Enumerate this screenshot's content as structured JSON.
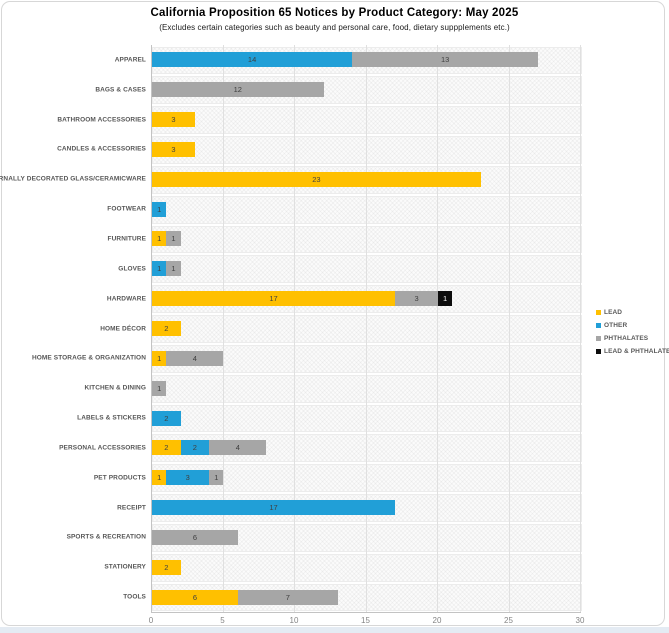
{
  "title": "California Proposition 65 Notices by Product Category: May 2025",
  "subtitle": "(Excludes certain categories such as beauty and personal care, food, dietary suppplements etc.)",
  "colors": {
    "lead": "#FFC000",
    "other": "#219FD7",
    "phthalates": "#A6A6A6",
    "lead_and_phthalates": "#0D0D0D",
    "grid": "#E0E0E0",
    "axis": "#C3C3C3"
  },
  "legend": [
    {
      "label": "LEAD",
      "color": "#FFC000"
    },
    {
      "label": "OTHER",
      "color": "#219FD7"
    },
    {
      "label": "PHTHALATES",
      "color": "#A6A6A6"
    },
    {
      "label": "LEAD & PHTHALATES",
      "color": "#0D0D0D"
    }
  ],
  "chart_data": {
    "type": "bar",
    "orientation": "horizontal",
    "stacked": true,
    "title": "California Proposition 65 Notices by Product Category: May 2025",
    "subtitle": "(Excludes certain categories such as beauty and personal care, food, dietary suppplements etc.)",
    "xlabel": "",
    "ylabel": "",
    "xlim": [
      0,
      30
    ],
    "xticks": [
      0,
      5,
      10,
      15,
      20,
      25,
      30
    ],
    "grid": true,
    "legend_position": "right",
    "categories": [
      "APPAREL",
      "BAGS & CASES",
      "BATHROOM ACCESSORIES",
      "CANDLES & ACCESSORIES",
      "EXTERNALLY DECORATED GLASS/CERAMICWARE",
      "FOOTWEAR",
      "FURNITURE",
      "GLOVES",
      "HARDWARE",
      "HOME DÉCOR",
      "HOME STORAGE & ORGANIZATION",
      "KITCHEN & DINING",
      "LABELS & STICKERS",
      "PERSONAL ACCESSORIES",
      "PET PRODUCTS",
      "RECEIPT",
      "SPORTS & RECREATION",
      "STATIONERY",
      "TOOLS"
    ],
    "series": [
      {
        "name": "LEAD",
        "color": "#FFC000",
        "label_color": "#3F3F3F",
        "values": [
          0,
          0,
          3,
          3,
          23,
          0,
          1,
          0,
          17,
          2,
          1,
          0,
          0,
          2,
          1,
          0,
          0,
          2,
          6
        ]
      },
      {
        "name": "OTHER",
        "color": "#219FD7",
        "label_color": "#3F3F3F",
        "values": [
          14,
          0,
          0,
          0,
          0,
          1,
          0,
          1,
          0,
          0,
          0,
          0,
          2,
          2,
          3,
          17,
          0,
          0,
          0
        ]
      },
      {
        "name": "PHTHALATES",
        "color": "#A6A6A6",
        "label_color": "#3F3F3F",
        "values": [
          13,
          12,
          0,
          0,
          0,
          0,
          1,
          1,
          3,
          0,
          4,
          1,
          0,
          4,
          1,
          0,
          6,
          0,
          7
        ]
      },
      {
        "name": "LEAD & PHTHALATES",
        "color": "#0D0D0D",
        "label_color": "#FFFFFF",
        "values": [
          0,
          0,
          0,
          0,
          0,
          0,
          0,
          0,
          1,
          0,
          0,
          0,
          0,
          0,
          0,
          0,
          0,
          0,
          0
        ]
      }
    ]
  }
}
